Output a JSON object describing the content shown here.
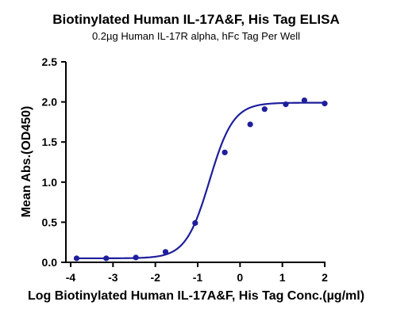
{
  "chart_data": {
    "type": "scatter",
    "title": "Biotinylated Human IL-17A&F, His Tag ELISA",
    "subtitle": "0.2µg Human IL-17R alpha, hFc Tag Per Well",
    "xlabel": "Log Biotinylated Human IL-17A&F, His Tag Conc.(µg/ml)",
    "ylabel": "Mean Abs.(OD450)",
    "xlim": [
      -4,
      2
    ],
    "ylim": [
      0,
      2.5
    ],
    "xticks": [
      "-4",
      "-3",
      "-2",
      "-1",
      "0",
      "1",
      "2"
    ],
    "yticks": [
      "0.0",
      "0.5",
      "1.0",
      "1.5",
      "2.0",
      "2.5"
    ],
    "grid": false,
    "series": [
      {
        "x": [
          -3.86,
          -3.16,
          -2.46,
          -1.76,
          -1.06,
          -0.36,
          0.24,
          0.58,
          1.08,
          1.52,
          2.0
        ],
        "y": [
          0.05,
          0.05,
          0.06,
          0.13,
          0.49,
          1.37,
          1.72,
          1.91,
          1.97,
          2.02,
          1.98
        ],
        "fit": {
          "model": "4PL",
          "bottom": 0.05,
          "top": 1.99,
          "log_ec50": -0.72,
          "hill": 1.55
        },
        "color": "#1f1f9c"
      }
    ]
  }
}
